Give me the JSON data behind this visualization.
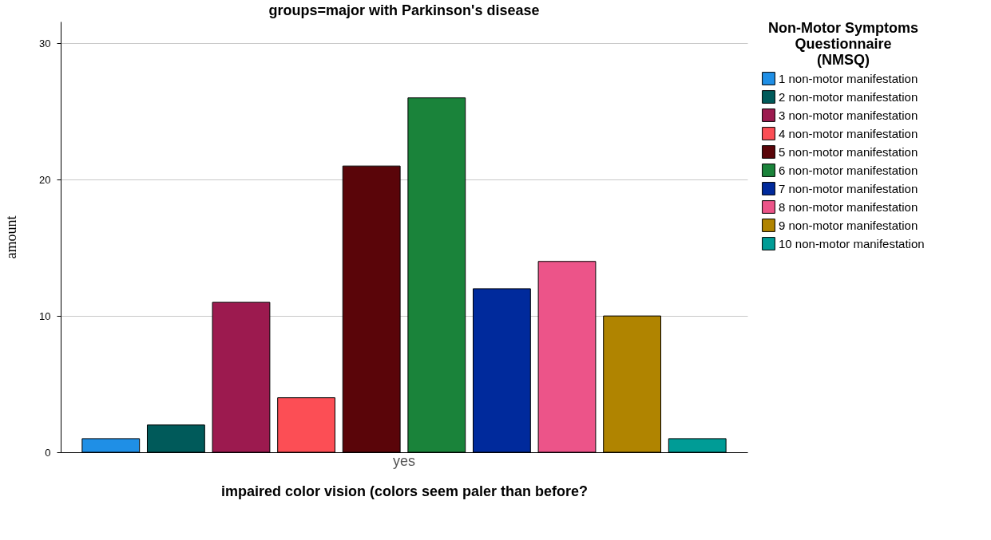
{
  "chart_data": {
    "type": "bar",
    "title": "groups=major with Parkinson's disease",
    "xlabel": "impaired color vision (colors seem paler than before?",
    "ylabel": "amount",
    "legend_title": "Non-Motor Symptoms Questionnaire (NMSQ)",
    "categories": [
      "yes"
    ],
    "series": [
      {
        "name": "1 non-motor manifestation",
        "color": "#1f8fe6",
        "values": [
          1
        ]
      },
      {
        "name": "2 non-motor manifestation",
        "color": "#005a5a",
        "values": [
          2
        ]
      },
      {
        "name": "3 non-motor manifestation",
        "color": "#9c1a4f",
        "values": [
          11
        ]
      },
      {
        "name": "4 non-motor manifestation",
        "color": "#fc4e55",
        "values": [
          4
        ]
      },
      {
        "name": "5 non-motor manifestation",
        "color": "#5a0509",
        "values": [
          21
        ]
      },
      {
        "name": "6 non-motor manifestation",
        "color": "#1a833a",
        "values": [
          26
        ]
      },
      {
        "name": "7 non-motor manifestation",
        "color": "#002a9c",
        "values": [
          12
        ]
      },
      {
        "name": "8 non-motor manifestation",
        "color": "#ec5489",
        "values": [
          14
        ]
      },
      {
        "name": "9 non-motor manifestation",
        "color": "#b08400",
        "values": [
          10
        ]
      },
      {
        "name": "10 non-motor manifestation",
        "color": "#009c96",
        "values": [
          1
        ]
      }
    ],
    "ylim": [
      0,
      31.6
    ],
    "yticks": [
      0,
      10,
      20,
      30
    ],
    "grid": "y",
    "legend": "right"
  }
}
